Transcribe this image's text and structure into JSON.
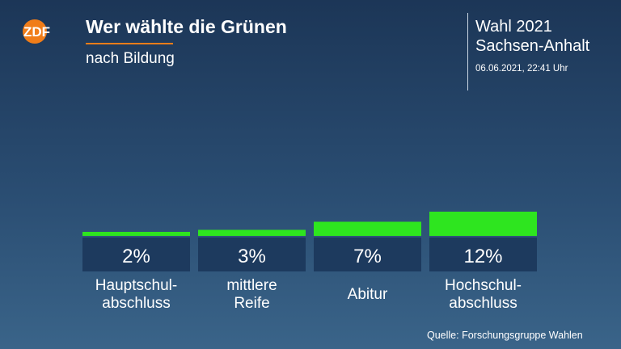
{
  "header": {
    "logo_text": "ZDF",
    "title": "Wer wählte die Grünen",
    "subtitle": "nach Bildung"
  },
  "info": {
    "line1": "Wahl 2021",
    "line2": "Sachsen-Anhalt",
    "date": "06.06.2021, 22:41 Uhr"
  },
  "source": "Quelle: Forschungsgruppe Wahlen",
  "colors": {
    "bar": "#2ee51f",
    "value_box": "#1d3a5e",
    "accent": "#f07d19"
  },
  "chart_data": {
    "type": "bar",
    "title": "Wer wählte die Grünen",
    "subtitle": "nach Bildung",
    "categories": [
      [
        "Hauptschul-",
        "abschluss"
      ],
      [
        "mittlere",
        "Reife"
      ],
      [
        "Abitur"
      ],
      [
        "Hochschul-",
        "abschluss"
      ]
    ],
    "values": [
      2,
      3,
      7,
      12
    ],
    "value_labels": [
      "2%",
      "3%",
      "7%",
      "12%"
    ],
    "unit": "%"
  }
}
